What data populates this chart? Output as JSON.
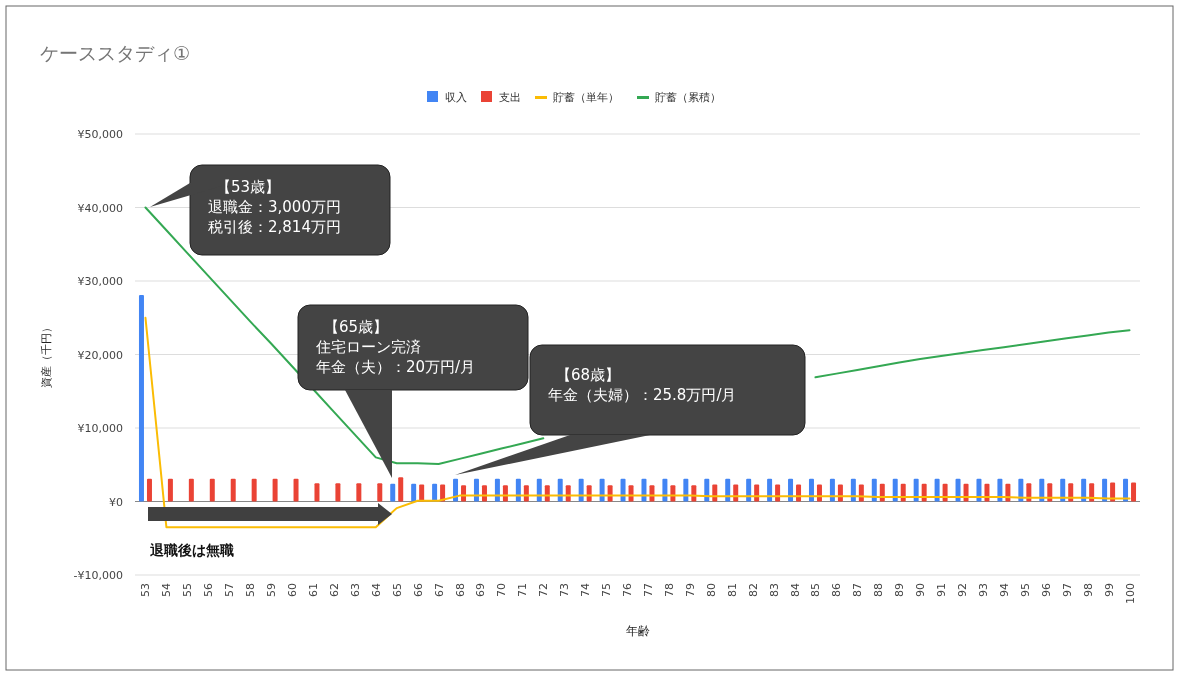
{
  "chart_data": {
    "type": "bar",
    "title": "ケーススタディ①",
    "xlabel": "年齢",
    "ylabel": "資産（千円）",
    "categories": [
      "53",
      "54",
      "55",
      "56",
      "57",
      "58",
      "59",
      "60",
      "61",
      "62",
      "63",
      "64",
      "65",
      "66",
      "67",
      "68",
      "69",
      "70",
      "71",
      "72",
      "73",
      "74",
      "75",
      "76",
      "77",
      "78",
      "79",
      "80",
      "81",
      "82",
      "83",
      "84",
      "85",
      "86",
      "87",
      "88",
      "89",
      "90",
      "91",
      "92",
      "93",
      "94",
      "95",
      "96",
      "97",
      "98",
      "99",
      "100"
    ],
    "series": [
      {
        "name": "収入",
        "color": "#4285f4",
        "values": [
          28100,
          0,
          0,
          0,
          0,
          0,
          0,
          0,
          0,
          0,
          0,
          0,
          2400,
          2400,
          2400,
          3100,
          3100,
          3100,
          3100,
          3100,
          3100,
          3100,
          3100,
          3100,
          3100,
          3100,
          3100,
          3100,
          3100,
          3100,
          3100,
          3100,
          3100,
          3100,
          3100,
          3100,
          3100,
          3100,
          3100,
          3100,
          3100,
          3100,
          3100,
          3100,
          3100,
          3100,
          3100,
          3100
        ]
      },
      {
        "name": "支出",
        "color": "#ea4335",
        "values": [
          3100,
          3100,
          3100,
          3100,
          3100,
          3100,
          3100,
          3100,
          2500,
          2500,
          2500,
          2500,
          3300,
          2300,
          2300,
          2200,
          2200,
          2200,
          2200,
          2200,
          2200,
          2200,
          2200,
          2200,
          2200,
          2200,
          2200,
          2300,
          2300,
          2300,
          2300,
          2300,
          2300,
          2300,
          2300,
          2400,
          2400,
          2400,
          2400,
          2400,
          2400,
          2400,
          2500,
          2500,
          2500,
          2500,
          2600,
          2600
        ]
      },
      {
        "name": "貯蓄（単年）",
        "type": "line",
        "color": "#fbbc04",
        "values": [
          25000,
          -3500,
          -3500,
          -3500,
          -3500,
          -3500,
          -3500,
          -3500,
          -3500,
          -3500,
          -3500,
          -3500,
          -900,
          100,
          100,
          800,
          800,
          800,
          800,
          800,
          800,
          800,
          800,
          800,
          800,
          800,
          800,
          700,
          700,
          700,
          700,
          700,
          700,
          700,
          700,
          600,
          600,
          600,
          600,
          600,
          600,
          600,
          500,
          500,
          500,
          500,
          400,
          400
        ]
      },
      {
        "name": "貯蓄（累積）",
        "type": "line",
        "color": "#34a853",
        "values": [
          40000,
          36900,
          33800,
          30700,
          27600,
          24500,
          21500,
          18400,
          15300,
          12200,
          9100,
          6000,
          5200,
          5200,
          5100,
          5800,
          6500,
          7200,
          7900,
          8600,
          null,
          null,
          null,
          null,
          null,
          null,
          null,
          null,
          null,
          null,
          null,
          null,
          16900,
          17400,
          17900,
          18400,
          18900,
          19400,
          19800,
          20200,
          20600,
          21000,
          21400,
          21800,
          22200,
          22600,
          23000,
          23300
        ]
      }
    ],
    "ylim": [
      -10000,
      50000
    ],
    "yticks": [
      {
        "value": -10000,
        "label": "-¥10,000"
      },
      {
        "value": 0,
        "label": "¥0"
      },
      {
        "value": 10000,
        "label": "¥10,000"
      },
      {
        "value": 20000,
        "label": "¥20,000"
      },
      {
        "value": 30000,
        "label": "¥30,000"
      },
      {
        "value": 40000,
        "label": "¥40,000"
      },
      {
        "value": 50000,
        "label": "¥50,000"
      }
    ],
    "grid": "y",
    "legend": "top",
    "annotations": [
      "【53歳】",
      "退職金：3,000万円",
      "税引後：2,814万円",
      "【65歳】",
      "住宅ローン完済",
      "年金（夫）：20万円/月",
      "【68歳】",
      "年金（夫婦）：25.8万円/月",
      "退職後は無職"
    ]
  }
}
